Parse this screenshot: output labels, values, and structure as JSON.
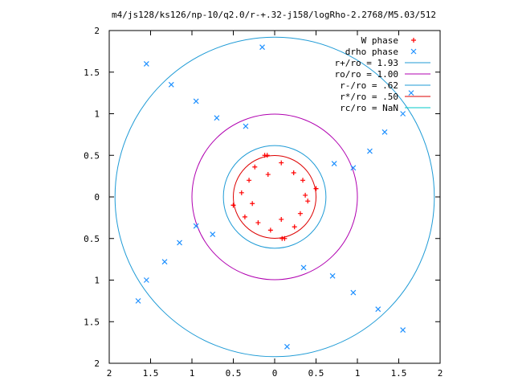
{
  "chart_data": {
    "type": "scatter",
    "title": "m4/js128/ks126/np-10/q2.0/r-+.32-j158/logRho-2.2768/M5.03/512",
    "xlabel": "",
    "ylabel": "",
    "xlim": [
      -2,
      2
    ],
    "ylim": [
      -2,
      2
    ],
    "grid": false,
    "legend_position": "top-right",
    "x_tick_labels": [
      "2",
      "1.5",
      "1",
      "0.5",
      "0",
      "0.5",
      "1",
      "1.5",
      "2"
    ],
    "y_tick_labels": [
      "2",
      "1.5",
      "1",
      "0.5",
      "0",
      "0.5",
      "1",
      "1.5",
      "2"
    ],
    "series": [
      {
        "name": "W phase",
        "kind": "points",
        "marker": "plus",
        "color": "#ff0000",
        "values": [
          [
            0.37,
            0.02
          ],
          [
            0.34,
            0.2
          ],
          [
            0.23,
            0.29
          ],
          [
            0.08,
            0.41
          ],
          [
            -0.08,
            0.27
          ],
          [
            -0.24,
            0.36
          ],
          [
            -0.31,
            0.2
          ],
          [
            -0.4,
            0.05
          ],
          [
            -0.27,
            -0.08
          ],
          [
            -0.36,
            -0.24
          ],
          [
            -0.2,
            -0.31
          ],
          [
            -0.05,
            -0.4
          ],
          [
            0.08,
            -0.27
          ],
          [
            0.24,
            -0.36
          ],
          [
            0.31,
            -0.2
          ],
          [
            0.4,
            -0.05
          ],
          [
            0.5,
            0.1
          ],
          [
            -0.5,
            -0.1
          ],
          [
            -0.09,
            0.5
          ],
          [
            0.09,
            -0.5
          ],
          [
            0.5,
            0.1
          ],
          [
            -0.12,
            0.5
          ],
          [
            -0.5,
            -0.1
          ],
          [
            0.12,
            -0.5
          ]
        ]
      },
      {
        "name": "drho phase",
        "kind": "points",
        "marker": "cross",
        "color": "#1e90ff",
        "values": [
          [
            0.72,
            0.4
          ],
          [
            0.95,
            0.35
          ],
          [
            1.15,
            0.55
          ],
          [
            1.33,
            0.78
          ],
          [
            1.55,
            1.0
          ],
          [
            1.65,
            1.25
          ],
          [
            -0.35,
            0.85
          ],
          [
            -0.7,
            0.95
          ],
          [
            -0.95,
            1.15
          ],
          [
            -1.25,
            1.35
          ],
          [
            -1.55,
            1.6
          ],
          [
            -0.15,
            1.8
          ],
          [
            -0.75,
            -0.45
          ],
          [
            -0.95,
            -0.35
          ],
          [
            -1.15,
            -0.55
          ],
          [
            -1.33,
            -0.78
          ],
          [
            -1.55,
            -1.0
          ],
          [
            -1.65,
            -1.25
          ],
          [
            0.35,
            -0.85
          ],
          [
            0.7,
            -0.95
          ],
          [
            0.95,
            -1.15
          ],
          [
            1.25,
            -1.35
          ],
          [
            1.55,
            -1.6
          ],
          [
            0.15,
            -1.8
          ]
        ]
      },
      {
        "name": "r+/ro = 1.93",
        "kind": "circle",
        "radius": 1.93,
        "color": "#1f9bd6"
      },
      {
        "name": "ro/ro = 1.00",
        "kind": "circle",
        "radius": 1.0,
        "color": "#b000b0"
      },
      {
        "name": "r-/ro = .62",
        "kind": "circle",
        "radius": 0.62,
        "color": "#1f9bd6"
      },
      {
        "name": "r*/ro = .50",
        "kind": "circle",
        "radius": 0.5,
        "color": "#dd0000"
      },
      {
        "name": "rc/ro = NaN",
        "kind": "circle",
        "radius": null,
        "color": "#00c8c8"
      }
    ]
  }
}
